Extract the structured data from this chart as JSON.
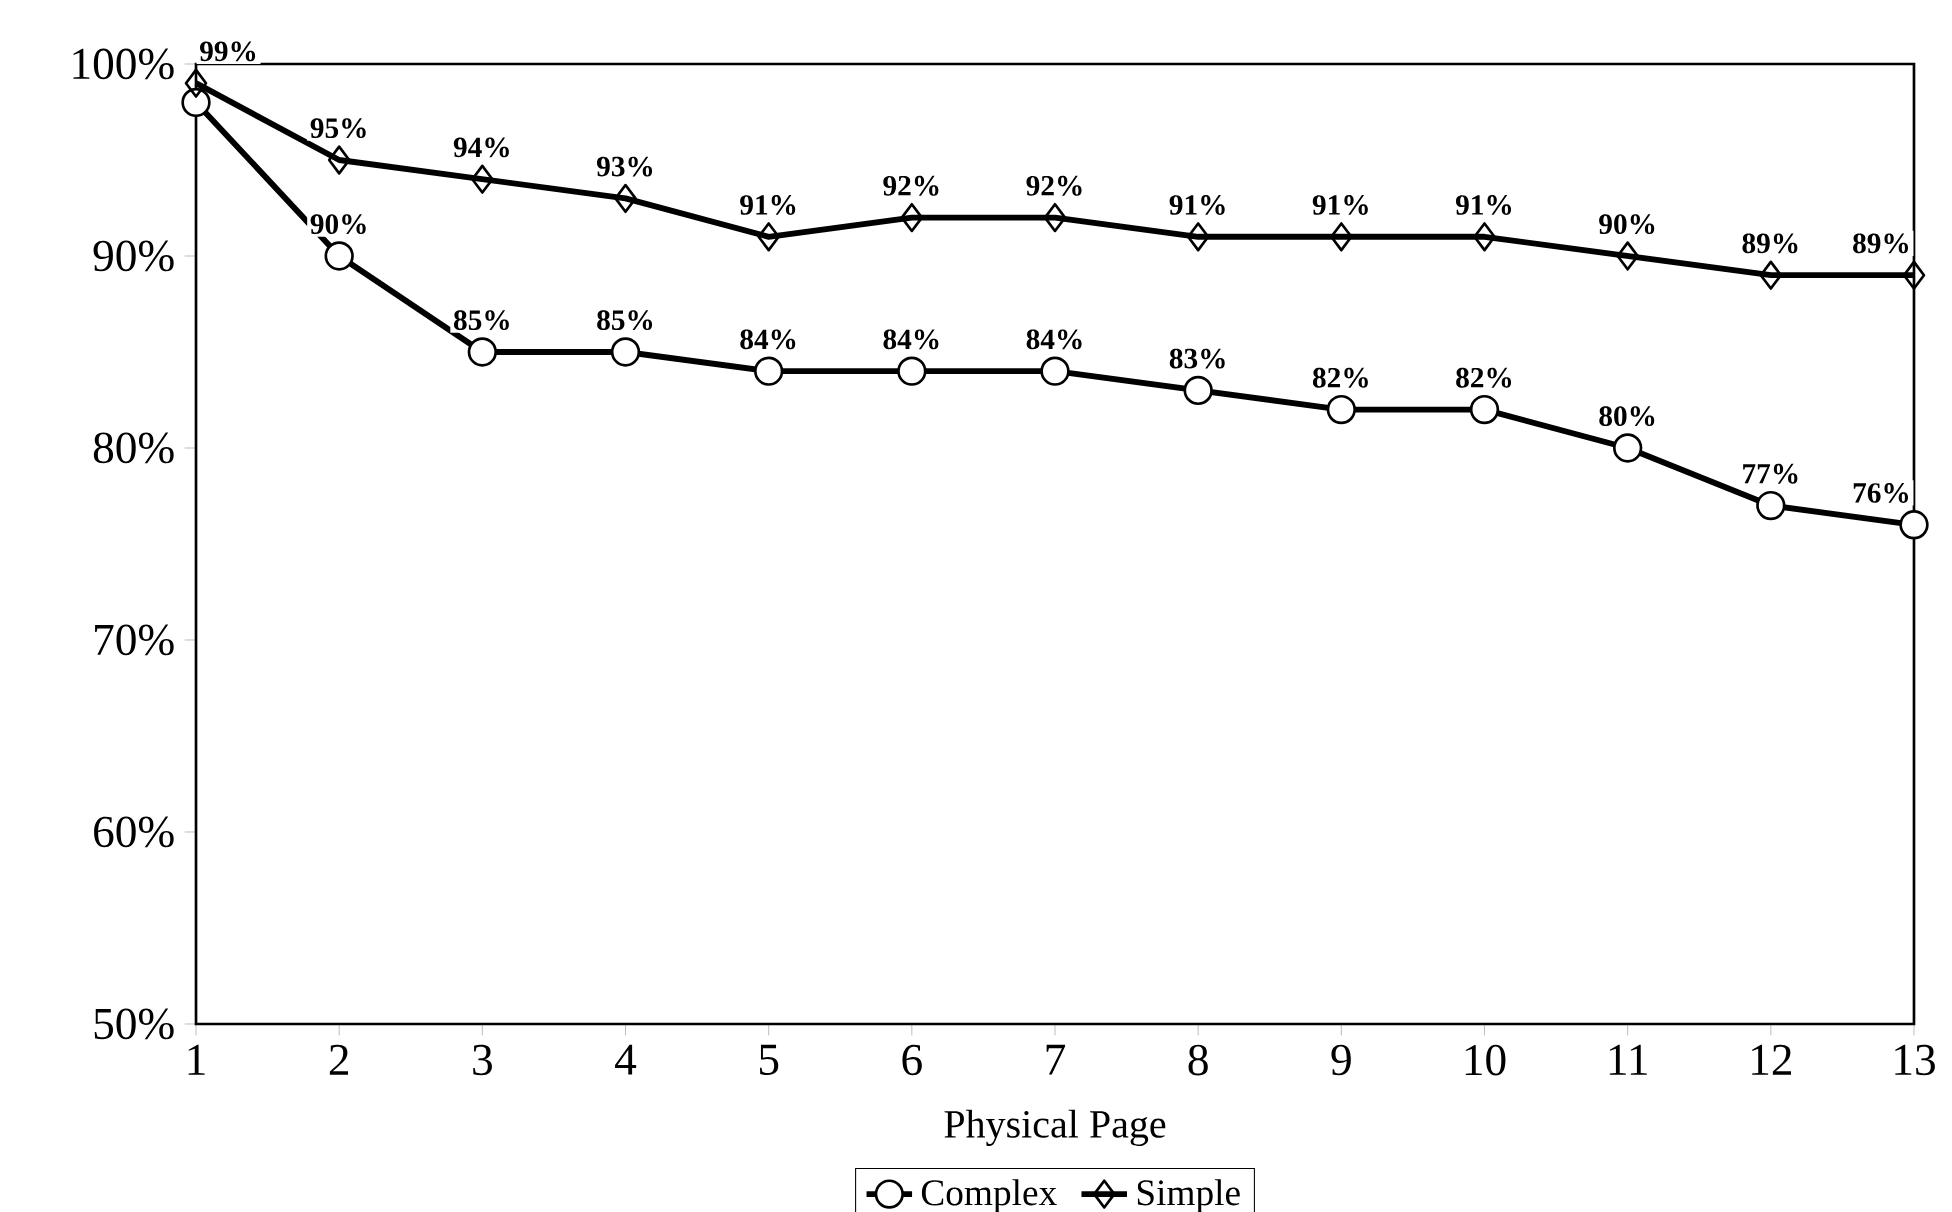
{
  "chart_data": {
    "type": "line",
    "xlabel": "Physical Page",
    "x": [
      1,
      2,
      3,
      4,
      5,
      6,
      7,
      8,
      9,
      10,
      11,
      12,
      13
    ],
    "series": [
      {
        "name": "Complex",
        "color": "#000000",
        "marker": "circle",
        "values": [
          98,
          90,
          85,
          85,
          84,
          84,
          84,
          83,
          82,
          82,
          80,
          77,
          76
        ],
        "value_labels": [
          null,
          "90%",
          "85%",
          "85%",
          "84%",
          "84%",
          "84%",
          "83%",
          "82%",
          "82%",
          "80%",
          "77%",
          "76%"
        ]
      },
      {
        "name": "Simple",
        "color": "#000000",
        "marker": "diamond",
        "values": [
          99,
          95,
          94,
          93,
          91,
          92,
          92,
          91,
          91,
          91,
          90,
          89,
          89
        ],
        "value_labels": [
          "99%",
          "95%",
          "94%",
          "93%",
          "91%",
          "92%",
          "92%",
          "91%",
          "91%",
          "91%",
          "90%",
          "89%",
          "89%"
        ]
      }
    ],
    "xlim": [
      1,
      13
    ],
    "xticks": [
      1,
      2,
      3,
      4,
      5,
      6,
      7,
      8,
      9,
      10,
      11,
      12,
      13
    ],
    "ylim": [
      50,
      100
    ],
    "yticks": [
      {
        "value": 50,
        "label": "50%"
      },
      {
        "value": 60,
        "label": "60%"
      },
      {
        "value": 70,
        "label": "70%"
      },
      {
        "value": 80,
        "label": "80%"
      },
      {
        "value": 90,
        "label": "90%"
      },
      {
        "value": 100,
        "label": "100%"
      }
    ],
    "legend": "bottom",
    "grid": false,
    "line_style": "solid"
  }
}
